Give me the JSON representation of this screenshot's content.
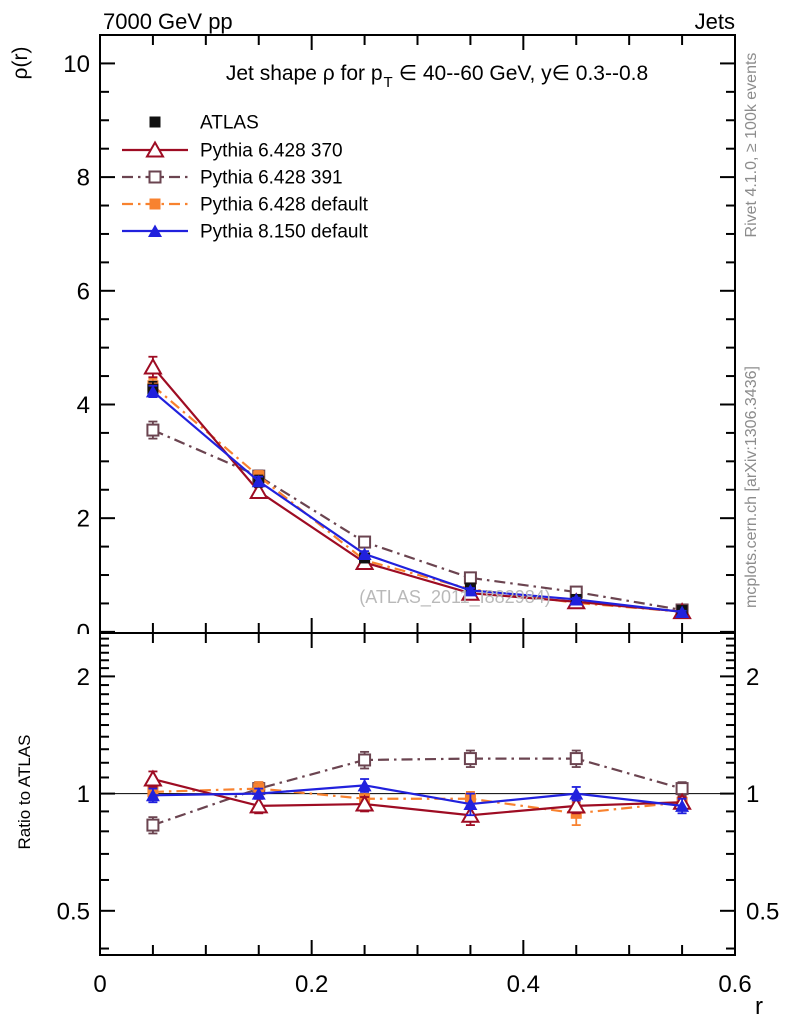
{
  "header": {
    "left": "7000 GeV pp",
    "right": "Jets"
  },
  "plot_title": {
    "full": "Jet shape ρ for p_T ∈ 40--60 GeV, y∈ 0.3--0.8",
    "part1": "Jet shape ρ for p",
    "sub": "T",
    "part2": "∈ 40--60 GeV, y∈ 0.3--0.8"
  },
  "axes": {
    "y_main_label": "ρ(r)",
    "y_ratio_label": "Ratio to ATLAS",
    "x_label": "r"
  },
  "side_notes": {
    "rivet": "Rivet 4.1.0, ≥ 100k events",
    "mcplots": "mcplots.cern.ch [arXiv:1306.3436]",
    "watermark": "(ATLAS_2011_I882984)"
  },
  "colors": {
    "atlas": "#111111",
    "pythia6_370": "#9e0c23",
    "pythia6_391": "#6b4450",
    "pythia6_default": "#f8822f",
    "pythia8_default": "#2121dd",
    "side_text": "#8c8c8c",
    "watermark": "#b9b9b9"
  },
  "chart_data": [
    {
      "type": "line",
      "panel": "main",
      "title": "Jet shape ρ for p_T ∈ 40--60 GeV, y∈ 0.3--0.8",
      "xlabel": "r",
      "ylabel": "ρ(r)",
      "xlim": [
        0,
        0.6
      ],
      "ylim": [
        -0.02,
        10.5
      ],
      "yscale": "linear",
      "grid": false,
      "legend_position": "top-left",
      "x": [
        0.05,
        0.15,
        0.25,
        0.35,
        0.45,
        0.55
      ],
      "xticks": {
        "major": [
          0,
          0.2,
          0.4,
          0.6
        ],
        "labels": [
          "0",
          "0.2",
          "0.4",
          "0.6"
        ],
        "minor_step": 0.05
      },
      "yticks": {
        "major": [
          0,
          2,
          4,
          6,
          8,
          10
        ],
        "labels": [
          "0",
          "2",
          "4",
          "6",
          "8",
          "10"
        ],
        "minor_step": 0.5
      },
      "series": [
        {
          "label": "ATLAS",
          "color": "#111111",
          "marker": "square-filled",
          "line": "none",
          "z": 3,
          "values": [
            4.27,
            2.65,
            1.3,
            0.77,
            0.57,
            0.375
          ],
          "errors": [
            0.13,
            0.1,
            0.06,
            0.05,
            0.04,
            0.03
          ]
        },
        {
          "label": "Pythia 6.428 370",
          "color": "#9e0c23",
          "marker": "triangle-open",
          "line": "solid",
          "z": 2,
          "values": [
            4.66,
            2.47,
            1.22,
            0.68,
            0.53,
            0.355
          ],
          "errors": [
            0.18,
            0.1,
            0.06,
            0.04,
            0.03,
            0.02
          ]
        },
        {
          "label": "Pythia 6.428 391",
          "color": "#6b4450",
          "marker": "square-open",
          "line": "dashdot",
          "z": 0,
          "values": [
            3.55,
            2.74,
            1.58,
            0.95,
            0.7,
            0.385
          ],
          "errors": [
            0.15,
            0.1,
            0.07,
            0.05,
            0.04,
            0.02
          ]
        },
        {
          "label": "Pythia 6.428 default",
          "color": "#f8822f",
          "marker": "square-filled",
          "line": "dashdot",
          "z": 1,
          "values": [
            4.33,
            2.74,
            1.26,
            0.75,
            0.51,
            0.355
          ],
          "errors": [
            0.12,
            0.09,
            0.06,
            0.04,
            0.03,
            0.02
          ]
        },
        {
          "label": "Pythia 8.150 default",
          "color": "#2121dd",
          "marker": "triangle-filled",
          "line": "solid",
          "z": 4,
          "values": [
            4.23,
            2.65,
            1.37,
            0.73,
            0.57,
            0.35
          ],
          "errors": [
            0.1,
            0.08,
            0.05,
            0.04,
            0.03,
            0.02
          ]
        }
      ]
    },
    {
      "type": "line",
      "panel": "ratio",
      "ylabel": "Ratio to ATLAS",
      "xlim": [
        0,
        0.6
      ],
      "ylim": [
        0.385,
        2.585
      ],
      "yscale": "log",
      "reference_line": 1,
      "x": [
        0.05,
        0.15,
        0.25,
        0.35,
        0.45,
        0.55
      ],
      "yticks": {
        "major": [
          0.5,
          1,
          2
        ],
        "labels": [
          "0.5",
          "1",
          "2"
        ],
        "minor": [
          0.4,
          0.6,
          0.7,
          0.8,
          0.9,
          1.1,
          1.2,
          1.3,
          1.4,
          1.5,
          1.6,
          1.7,
          1.8,
          1.9,
          2.1,
          2.2,
          2.3,
          2.4,
          2.5
        ]
      },
      "series": [
        {
          "label": "Pythia 6.428 370",
          "color": "#9e0c23",
          "marker": "triangle-open",
          "line": "solid",
          "z": 2,
          "values": [
            1.09,
            0.93,
            0.94,
            0.88,
            0.93,
            0.95
          ],
          "errors": [
            0.05,
            0.04,
            0.04,
            0.05,
            0.04,
            0.03
          ]
        },
        {
          "label": "Pythia 6.428 391",
          "color": "#6b4450",
          "marker": "square-open",
          "line": "dashdot",
          "z": 0,
          "values": [
            0.83,
            1.03,
            1.22,
            1.23,
            1.23,
            1.03
          ],
          "errors": [
            0.04,
            0.04,
            0.06,
            0.06,
            0.06,
            0.04
          ]
        },
        {
          "label": "Pythia 6.428 default",
          "color": "#f8822f",
          "marker": "square-filled",
          "line": "dashdot",
          "z": 1,
          "values": [
            1.01,
            1.03,
            0.97,
            0.97,
            0.89,
            0.95
          ],
          "errors": [
            0.04,
            0.04,
            0.05,
            0.04,
            0.06,
            0.03
          ]
        },
        {
          "label": "Pythia 8.150 default",
          "color": "#2121dd",
          "marker": "triangle-filled",
          "line": "solid",
          "z": 3,
          "values": [
            0.99,
            1.0,
            1.05,
            0.94,
            1.0,
            0.93
          ],
          "errors": [
            0.04,
            0.03,
            0.04,
            0.06,
            0.04,
            0.04
          ]
        }
      ]
    }
  ]
}
